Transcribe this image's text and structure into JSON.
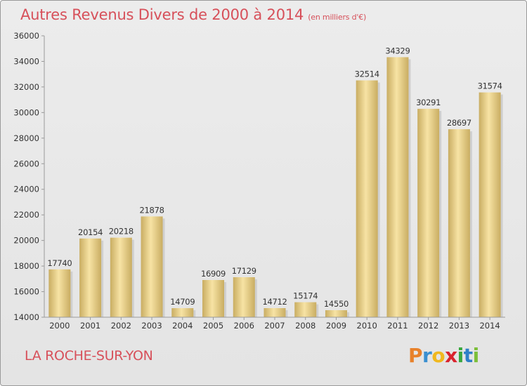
{
  "header": {
    "title": "Autres Revenus Divers de 2000 à 2014",
    "subtitle": "(en milliers d'€)"
  },
  "footer": {
    "city": "LA ROCHE-SUR-YON",
    "logo_text": "Proxiti",
    "logo_letters": [
      {
        "ch": "P",
        "color": "#e8812a"
      },
      {
        "ch": "r",
        "color": "#3a8fd0"
      },
      {
        "ch": "o",
        "color": "#f0b81e"
      },
      {
        "ch": "x",
        "color": "#d9232d"
      },
      {
        "ch": "i",
        "color": "#3aa83f"
      },
      {
        "ch": "t",
        "color": "#2f7fc8"
      },
      {
        "ch": "i",
        "color": "#7cbf3a"
      }
    ]
  },
  "chart_data": {
    "type": "bar",
    "categories": [
      "2000",
      "2001",
      "2002",
      "2003",
      "2004",
      "2005",
      "2006",
      "2007",
      "2008",
      "2009",
      "2010",
      "2011",
      "2012",
      "2013",
      "2014"
    ],
    "values": [
      17740,
      20154,
      20218,
      21878,
      14709,
      16909,
      17129,
      14712,
      15174,
      14550,
      32514,
      34329,
      30291,
      28697,
      31574
    ],
    "data_labels": [
      "17740",
      "20154",
      "20218",
      "21878",
      "14709",
      "16909",
      "17129",
      "14712",
      "15174",
      "14550",
      "32514",
      "34329",
      "30291",
      "28697",
      "31574"
    ],
    "ylim": [
      14000,
      36000
    ],
    "yticks": [
      "14000",
      "16000",
      "18000",
      "20000",
      "22000",
      "24000",
      "26000",
      "28000",
      "30000",
      "32000",
      "34000",
      "36000"
    ],
    "grid": false,
    "colors": {
      "bar_light": "#f7e3a4",
      "bar_dark": "#c9ad62",
      "axis": "#9a9a9a",
      "text": "#333333",
      "accent": "#d7505a"
    }
  }
}
